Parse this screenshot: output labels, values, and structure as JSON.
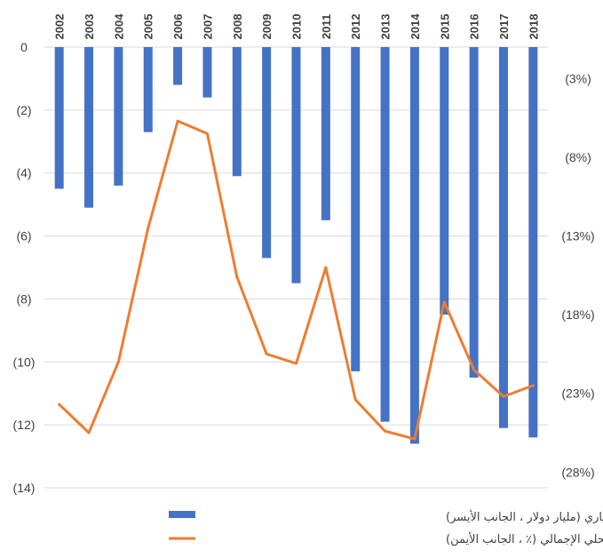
{
  "chart_data": {
    "type": "bar",
    "categories": [
      "2002",
      "2003",
      "2004",
      "2005",
      "2006",
      "2007",
      "2008",
      "2009",
      "2010",
      "2011",
      "2012",
      "2013",
      "2014",
      "2015",
      "2016",
      "2017",
      "2018"
    ],
    "series": [
      {
        "name": "رصيد الحساب الجاري (مليار دولار ، الجانب الأيسر)",
        "type": "bar",
        "axis": "left",
        "color": "#4472C4",
        "values": [
          -4.5,
          -5.1,
          -4.4,
          -2.7,
          -1.2,
          -1.6,
          -4.1,
          -6.7,
          -7.5,
          -5.5,
          -10.3,
          -11.9,
          -12.6,
          -8.5,
          -10.5,
          -12.1,
          -12.4
        ]
      },
      {
        "name": "نسبة إلى الناتج المحلي الإجمالي (٪ ، الجانب الأيمن)",
        "type": "line",
        "axis": "right",
        "color": "#ED7D31",
        "values": [
          -23.7,
          -25.5,
          -21.0,
          -12.5,
          -5.7,
          -6.5,
          -15.6,
          -20.5,
          -21.1,
          -15.0,
          -23.4,
          -25.4,
          -25.9,
          -17.2,
          -21.5,
          -23.2,
          -22.5
        ]
      }
    ],
    "y_left": {
      "ylim": [
        -14,
        0
      ],
      "ticks": [
        0,
        -2,
        -4,
        -6,
        -8,
        -10,
        -12,
        -14
      ],
      "tick_labels": [
        "0",
        "(2)",
        "(4)",
        "(6)",
        "(8)",
        "(10)",
        "(12)",
        "(14)"
      ]
    },
    "y_right": {
      "ylim": [
        -29,
        -1
      ],
      "ticks": [
        -3,
        -8,
        -13,
        -18,
        -23,
        -28
      ],
      "tick_labels": [
        "(3%)",
        "(8%)",
        "(13%)",
        "(18%)",
        "(23%)",
        "(28%)"
      ]
    },
    "x_position": "top",
    "grid": true,
    "legend_position": "bottom"
  }
}
